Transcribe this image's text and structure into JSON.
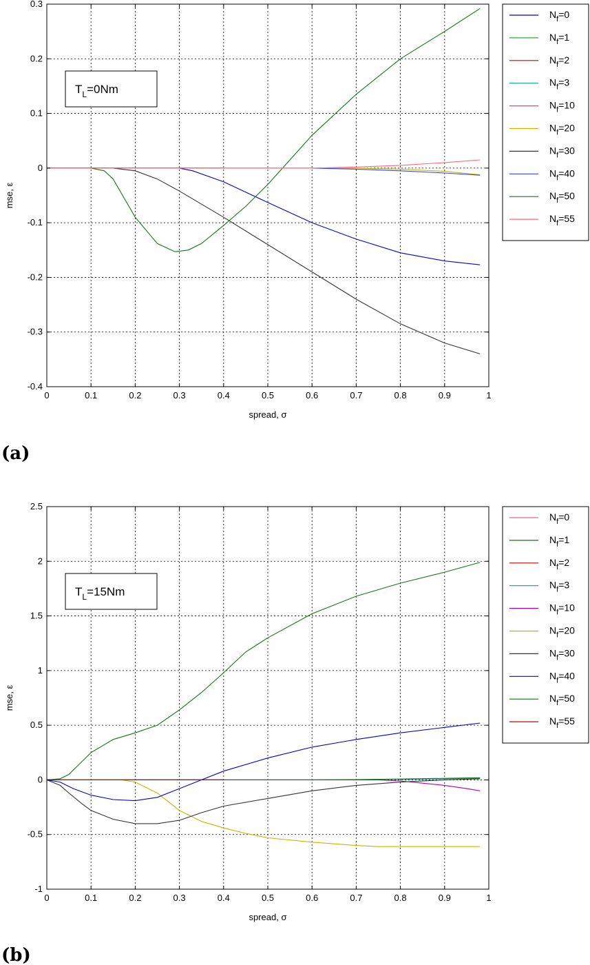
{
  "chart_data": [
    {
      "type": "line",
      "panel_label": "(a)",
      "annotation": {
        "main": "T",
        "sub": "L",
        "rest": "=0Nm"
      },
      "xlabel": "spread, σ",
      "ylabel": "mse, ε",
      "xlim": [
        0,
        1
      ],
      "ylim": [
        -0.4,
        0.3
      ],
      "xticks": [
        "0",
        "0.1",
        "0.2",
        "0.3",
        "0.4",
        "0.5",
        "0.6",
        "0.7",
        "0.8",
        "0.9",
        "1"
      ],
      "yticks": [
        "-0.4",
        "-0.3",
        "-0.2",
        "-0.1",
        "0",
        "0.1",
        "0.2",
        "0.3"
      ],
      "grid": true,
      "legend_position": "outside-right",
      "series": [
        {
          "name": "0",
          "color": "#0000cc",
          "x": [
            0,
            0.3,
            0.33,
            0.4,
            0.5,
            0.6,
            0.7,
            0.8,
            0.9,
            0.98
          ],
          "y": [
            0,
            0,
            -0.005,
            -0.025,
            -0.063,
            -0.1,
            -0.13,
            -0.155,
            -0.17,
            -0.177
          ]
        },
        {
          "name": "1",
          "color": "#33aa33",
          "x": [
            0,
            0.1,
            0.2,
            0.3,
            0.4
          ],
          "y": [
            0,
            0,
            0,
            0,
            0
          ]
        },
        {
          "name": "2",
          "color": "#cc0000",
          "x": [
            0,
            0.1,
            0.2,
            0.3,
            0.4
          ],
          "y": [
            0,
            0,
            0,
            0,
            0
          ]
        },
        {
          "name": "3",
          "color": "#00a0a0",
          "x": [
            0,
            0.1,
            0.2,
            0.3,
            0.4
          ],
          "y": [
            0,
            0,
            0,
            0,
            0
          ]
        },
        {
          "name": "10",
          "color": "#dd33dd",
          "x": [
            0,
            0.1,
            0.2,
            0.3,
            0.4
          ],
          "y": [
            0,
            0,
            0,
            0,
            0
          ]
        },
        {
          "name": "20",
          "color": "#c8b400",
          "x": [
            0,
            0.6,
            0.7,
            0.8,
            0.9,
            0.98
          ],
          "y": [
            0,
            0,
            0,
            -0.002,
            -0.006,
            -0.012
          ]
        },
        {
          "name": "30",
          "color": "#333333",
          "x": [
            0,
            0.15,
            0.2,
            0.25,
            0.3,
            0.4,
            0.5,
            0.6,
            0.7,
            0.8,
            0.9,
            0.98
          ],
          "y": [
            0,
            0,
            -0.005,
            -0.02,
            -0.042,
            -0.09,
            -0.14,
            -0.19,
            -0.24,
            -0.285,
            -0.32,
            -0.34
          ]
        },
        {
          "name": "40",
          "color": "#3344ff",
          "x": [
            0,
            0.6,
            0.7,
            0.8,
            0.9,
            0.98
          ],
          "y": [
            0,
            0,
            -0.002,
            -0.005,
            -0.009,
            -0.013
          ]
        },
        {
          "name": "50",
          "color": "#117711",
          "x": [
            0,
            0.1,
            0.13,
            0.15,
            0.2,
            0.25,
            0.29,
            0.32,
            0.35,
            0.4,
            0.45,
            0.5,
            0.55,
            0.6,
            0.7,
            0.8,
            0.9,
            0.98
          ],
          "y": [
            0,
            0,
            -0.005,
            -0.02,
            -0.09,
            -0.138,
            -0.153,
            -0.15,
            -0.138,
            -0.105,
            -0.07,
            -0.03,
            0.015,
            0.06,
            0.135,
            0.2,
            0.25,
            0.292
          ]
        },
        {
          "name": "55",
          "color": "#ff6677",
          "x": [
            0,
            0.6,
            0.7,
            0.8,
            0.9,
            0.98
          ],
          "y": [
            0,
            0,
            0.002,
            0.005,
            0.01,
            0.015
          ]
        }
      ]
    },
    {
      "type": "line",
      "panel_label": "(b)",
      "annotation": {
        "main": "T",
        "sub": "L",
        "rest": "=15Nm"
      },
      "xlabel": "spread, σ",
      "ylabel": "mse, ε",
      "xlim": [
        0,
        1
      ],
      "ylim": [
        -1,
        2.5
      ],
      "xticks": [
        "0",
        "0.1",
        "0.2",
        "0.3",
        "0.4",
        "0.5",
        "0.6",
        "0.7",
        "0.8",
        "0.9",
        "1"
      ],
      "yticks": [
        "-1",
        "-0.5",
        "0",
        "0.5",
        "1",
        "1.5",
        "2",
        "2.5"
      ],
      "grid": true,
      "legend_position": "outside-right",
      "series": [
        {
          "name": "0",
          "color": "#dd6688",
          "x": [
            0,
            0.1,
            0.2,
            0.3,
            0.4
          ],
          "y": [
            0,
            0,
            0,
            0,
            0
          ]
        },
        {
          "name": "1",
          "color": "#117711",
          "x": [
            0,
            0.03,
            0.05,
            0.08,
            0.1,
            0.15,
            0.2,
            0.25,
            0.3,
            0.35,
            0.4,
            0.45,
            0.5,
            0.6,
            0.7,
            0.8,
            0.9,
            0.98
          ],
          "y": [
            0,
            0.01,
            0.05,
            0.17,
            0.25,
            0.37,
            0.43,
            0.5,
            0.64,
            0.8,
            0.98,
            1.17,
            1.3,
            1.52,
            1.68,
            1.8,
            1.9,
            1.99
          ]
        },
        {
          "name": "2",
          "color": "#cc0000",
          "x": [
            0,
            0.1,
            0.2,
            0.3,
            0.4
          ],
          "y": [
            0,
            0,
            0,
            0,
            0
          ]
        },
        {
          "name": "3",
          "color": "#00a0a0",
          "x": [
            0,
            0.6,
            0.7,
            0.8,
            0.9,
            0.98
          ],
          "y": [
            0,
            0,
            0.002,
            0.005,
            0.01,
            0.015
          ]
        },
        {
          "name": "10",
          "color": "#aa00aa",
          "x": [
            0,
            0.75,
            0.8,
            0.85,
            0.9,
            0.95,
            0.98
          ],
          "y": [
            0,
            0,
            -0.01,
            -0.03,
            -0.05,
            -0.08,
            -0.1
          ]
        },
        {
          "name": "20",
          "color": "#c8b400",
          "x": [
            0,
            0.17,
            0.2,
            0.25,
            0.3,
            0.35,
            0.4,
            0.45,
            0.5,
            0.6,
            0.7,
            0.75,
            0.8,
            0.9,
            0.98
          ],
          "y": [
            0,
            0,
            -0.02,
            -0.12,
            -0.28,
            -0.38,
            -0.44,
            -0.49,
            -0.53,
            -0.57,
            -0.6,
            -0.61,
            -0.61,
            -0.61,
            -0.61
          ]
        },
        {
          "name": "30",
          "color": "#333333",
          "x": [
            0,
            0.03,
            0.05,
            0.08,
            0.1,
            0.15,
            0.2,
            0.25,
            0.3,
            0.35,
            0.4,
            0.5,
            0.6,
            0.7,
            0.8,
            0.9,
            0.98
          ],
          "y": [
            0,
            -0.05,
            -0.12,
            -0.22,
            -0.28,
            -0.36,
            -0.4,
            -0.4,
            -0.37,
            -0.3,
            -0.24,
            -0.17,
            -0.1,
            -0.05,
            -0.02,
            0,
            0.01
          ]
        },
        {
          "name": "40",
          "color": "#0000cc",
          "x": [
            0,
            0.03,
            0.06,
            0.1,
            0.15,
            0.2,
            0.25,
            0.3,
            0.35,
            0.4,
            0.5,
            0.6,
            0.7,
            0.8,
            0.9,
            0.98
          ],
          "y": [
            0,
            -0.02,
            -0.08,
            -0.14,
            -0.18,
            -0.19,
            -0.16,
            -0.08,
            0,
            0.08,
            0.2,
            0.3,
            0.37,
            0.43,
            0.48,
            0.52
          ]
        },
        {
          "name": "50",
          "color": "#117711",
          "x": [
            0,
            0.6,
            0.7,
            0.8,
            0.9,
            0.98
          ],
          "y": [
            0,
            0,
            0.003,
            0.008,
            0.014,
            0.02
          ]
        },
        {
          "name": "55",
          "color": "#cc0000",
          "x": [
            0,
            0.1,
            0.2,
            0.3,
            0.4
          ],
          "y": [
            0,
            0,
            0,
            0,
            0
          ]
        }
      ]
    }
  ]
}
